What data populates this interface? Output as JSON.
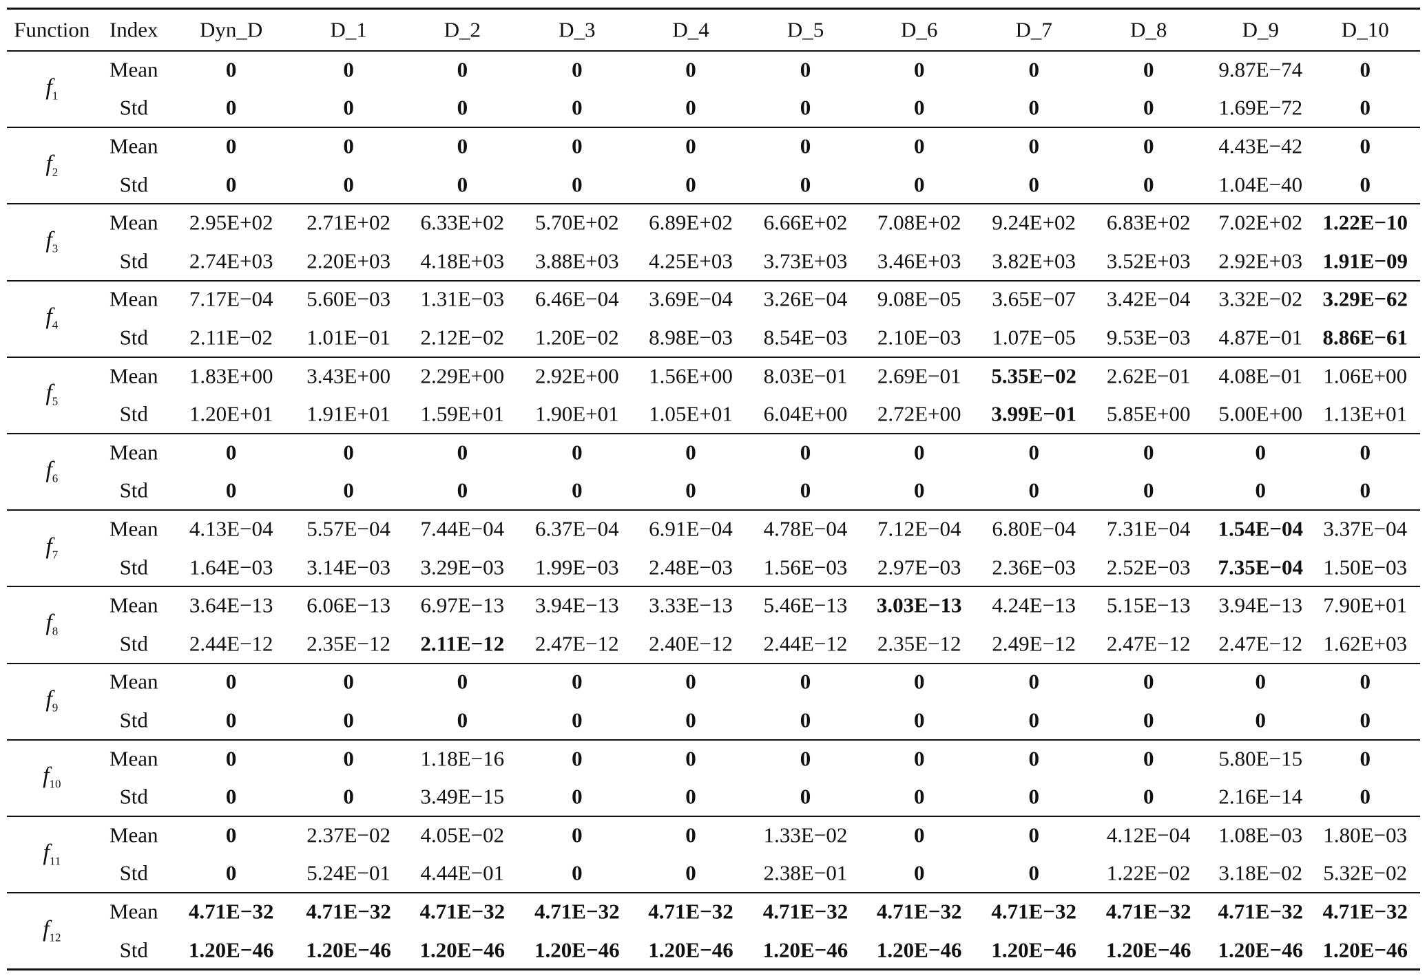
{
  "table": {
    "header": [
      "Function",
      "Index",
      "Dyn_D",
      "D_1",
      "D_2",
      "D_3",
      "D_4",
      "D_5",
      "D_6",
      "D_7",
      "D_8",
      "D_9",
      "D_10"
    ],
    "groups": [
      {
        "function": {
          "name": "f",
          "sub": "1"
        },
        "rows": [
          {
            "index": "Mean",
            "cells": [
              "0",
              "0",
              "0",
              "0",
              "0",
              "0",
              "0",
              "0",
              "0",
              "9.87E−74",
              "0"
            ],
            "bold": [
              0,
              1,
              2,
              3,
              4,
              5,
              6,
              7,
              8,
              10
            ]
          },
          {
            "index": "Std",
            "cells": [
              "0",
              "0",
              "0",
              "0",
              "0",
              "0",
              "0",
              "0",
              "0",
              "1.69E−72",
              "0"
            ],
            "bold": [
              0,
              1,
              2,
              3,
              4,
              5,
              6,
              7,
              8,
              10
            ]
          }
        ]
      },
      {
        "function": {
          "name": "f",
          "sub": "2"
        },
        "rows": [
          {
            "index": "Mean",
            "cells": [
              "0",
              "0",
              "0",
              "0",
              "0",
              "0",
              "0",
              "0",
              "0",
              "4.43E−42",
              "0"
            ],
            "bold": [
              0,
              1,
              2,
              3,
              4,
              5,
              6,
              7,
              8,
              10
            ]
          },
          {
            "index": "Std",
            "cells": [
              "0",
              "0",
              "0",
              "0",
              "0",
              "0",
              "0",
              "0",
              "0",
              "1.04E−40",
              "0"
            ],
            "bold": [
              0,
              1,
              2,
              3,
              4,
              5,
              6,
              7,
              8,
              10
            ]
          }
        ]
      },
      {
        "function": {
          "name": "f",
          "sub": "3"
        },
        "rows": [
          {
            "index": "Mean",
            "cells": [
              "2.95E+02",
              "2.71E+02",
              "6.33E+02",
              "5.70E+02",
              "6.89E+02",
              "6.66E+02",
              "7.08E+02",
              "9.24E+02",
              "6.83E+02",
              "7.02E+02",
              "1.22E−10"
            ],
            "bold": [
              10
            ]
          },
          {
            "index": "Std",
            "cells": [
              "2.74E+03",
              "2.20E+03",
              "4.18E+03",
              "3.88E+03",
              "4.25E+03",
              "3.73E+03",
              "3.46E+03",
              "3.82E+03",
              "3.52E+03",
              "2.92E+03",
              "1.91E−09"
            ],
            "bold": [
              10
            ]
          }
        ]
      },
      {
        "function": {
          "name": "f",
          "sub": "4"
        },
        "rows": [
          {
            "index": "Mean",
            "cells": [
              "7.17E−04",
              "5.60E−03",
              "1.31E−03",
              "6.46E−04",
              "3.69E−04",
              "3.26E−04",
              "9.08E−05",
              "3.65E−07",
              "3.42E−04",
              "3.32E−02",
              "3.29E−62"
            ],
            "bold": [
              10
            ]
          },
          {
            "index": "Std",
            "cells": [
              "2.11E−02",
              "1.01E−01",
              "2.12E−02",
              "1.20E−02",
              "8.98E−03",
              "8.54E−03",
              "2.10E−03",
              "1.07E−05",
              "9.53E−03",
              "4.87E−01",
              "8.86E−61"
            ],
            "bold": [
              10
            ]
          }
        ]
      },
      {
        "function": {
          "name": "f",
          "sub": "5"
        },
        "rows": [
          {
            "index": "Mean",
            "cells": [
              "1.83E+00",
              "3.43E+00",
              "2.29E+00",
              "2.92E+00",
              "1.56E+00",
              "8.03E−01",
              "2.69E−01",
              "5.35E−02",
              "2.62E−01",
              "4.08E−01",
              "1.06E+00"
            ],
            "bold": [
              7
            ]
          },
          {
            "index": "Std",
            "cells": [
              "1.20E+01",
              "1.91E+01",
              "1.59E+01",
              "1.90E+01",
              "1.05E+01",
              "6.04E+00",
              "2.72E+00",
              "3.99E−01",
              "5.85E+00",
              "5.00E+00",
              "1.13E+01"
            ],
            "bold": [
              7
            ]
          }
        ]
      },
      {
        "function": {
          "name": "f",
          "sub": "6"
        },
        "rows": [
          {
            "index": "Mean",
            "cells": [
              "0",
              "0",
              "0",
              "0",
              "0",
              "0",
              "0",
              "0",
              "0",
              "0",
              "0"
            ],
            "bold": [
              0,
              1,
              2,
              3,
              4,
              5,
              6,
              7,
              8,
              9,
              10
            ]
          },
          {
            "index": "Std",
            "cells": [
              "0",
              "0",
              "0",
              "0",
              "0",
              "0",
              "0",
              "0",
              "0",
              "0",
              "0"
            ],
            "bold": [
              0,
              1,
              2,
              3,
              4,
              5,
              6,
              7,
              8,
              9,
              10
            ]
          }
        ]
      },
      {
        "function": {
          "name": "f",
          "sub": "7"
        },
        "rows": [
          {
            "index": "Mean",
            "cells": [
              "4.13E−04",
              "5.57E−04",
              "7.44E−04",
              "6.37E−04",
              "6.91E−04",
              "4.78E−04",
              "7.12E−04",
              "6.80E−04",
              "7.31E−04",
              "1.54E−04",
              "3.37E−04"
            ],
            "bold": [
              9
            ]
          },
          {
            "index": "Std",
            "cells": [
              "1.64E−03",
              "3.14E−03",
              "3.29E−03",
              "1.99E−03",
              "2.48E−03",
              "1.56E−03",
              "2.97E−03",
              "2.36E−03",
              "2.52E−03",
              "7.35E−04",
              "1.50E−03"
            ],
            "bold": [
              9
            ]
          }
        ]
      },
      {
        "function": {
          "name": "f",
          "sub": "8"
        },
        "rows": [
          {
            "index": "Mean",
            "cells": [
              "3.64E−13",
              "6.06E−13",
              "6.97E−13",
              "3.94E−13",
              "3.33E−13",
              "5.46E−13",
              "3.03E−13",
              "4.24E−13",
              "5.15E−13",
              "3.94E−13",
              "7.90E+01"
            ],
            "bold": [
              6
            ]
          },
          {
            "index": "Std",
            "cells": [
              "2.44E−12",
              "2.35E−12",
              "2.11E−12",
              "2.47E−12",
              "2.40E−12",
              "2.44E−12",
              "2.35E−12",
              "2.49E−12",
              "2.47E−12",
              "2.47E−12",
              "1.62E+03"
            ],
            "bold": [
              2
            ]
          }
        ]
      },
      {
        "function": {
          "name": "f",
          "sub": "9"
        },
        "rows": [
          {
            "index": "Mean",
            "cells": [
              "0",
              "0",
              "0",
              "0",
              "0",
              "0",
              "0",
              "0",
              "0",
              "0",
              "0"
            ],
            "bold": [
              0,
              1,
              2,
              3,
              4,
              5,
              6,
              7,
              8,
              9,
              10
            ]
          },
          {
            "index": "Std",
            "cells": [
              "0",
              "0",
              "0",
              "0",
              "0",
              "0",
              "0",
              "0",
              "0",
              "0",
              "0"
            ],
            "bold": [
              0,
              1,
              2,
              3,
              4,
              5,
              6,
              7,
              8,
              9,
              10
            ]
          }
        ]
      },
      {
        "function": {
          "name": "f",
          "sub": "10"
        },
        "rows": [
          {
            "index": "Mean",
            "cells": [
              "0",
              "0",
              "1.18E−16",
              "0",
              "0",
              "0",
              "0",
              "0",
              "0",
              "5.80E−15",
              "0"
            ],
            "bold": [
              0,
              1,
              3,
              4,
              5,
              6,
              7,
              8,
              10
            ]
          },
          {
            "index": "Std",
            "cells": [
              "0",
              "0",
              "3.49E−15",
              "0",
              "0",
              "0",
              "0",
              "0",
              "0",
              "2.16E−14",
              "0"
            ],
            "bold": [
              0,
              1,
              3,
              4,
              5,
              6,
              7,
              8,
              10
            ]
          }
        ]
      },
      {
        "function": {
          "name": "f",
          "sub": "11"
        },
        "rows": [
          {
            "index": "Mean",
            "cells": [
              "0",
              "2.37E−02",
              "4.05E−02",
              "0",
              "0",
              "1.33E−02",
              "0",
              "0",
              "4.12E−04",
              "1.08E−03",
              "1.80E−03"
            ],
            "bold": [
              0,
              3,
              4,
              6,
              7
            ]
          },
          {
            "index": "Std",
            "cells": [
              "0",
              "5.24E−01",
              "4.44E−01",
              "0",
              "0",
              "2.38E−01",
              "0",
              "0",
              "1.22E−02",
              "3.18E−02",
              "5.32E−02"
            ],
            "bold": [
              0,
              3,
              4,
              6,
              7
            ]
          }
        ]
      },
      {
        "function": {
          "name": "f",
          "sub": "12"
        },
        "rows": [
          {
            "index": "Mean",
            "cells": [
              "4.71E−32",
              "4.71E−32",
              "4.71E−32",
              "4.71E−32",
              "4.71E−32",
              "4.71E−32",
              "4.71E−32",
              "4.71E−32",
              "4.71E−32",
              "4.71E−32",
              "4.71E−32"
            ],
            "bold": [
              0,
              1,
              2,
              3,
              4,
              5,
              6,
              7,
              8,
              9,
              10
            ]
          },
          {
            "index": "Std",
            "cells": [
              "1.20E−46",
              "1.20E−46",
              "1.20E−46",
              "1.20E−46",
              "1.20E−46",
              "1.20E−46",
              "1.20E−46",
              "1.20E−46",
              "1.20E−46",
              "1.20E−46",
              "1.20E−46"
            ],
            "bold": [
              0,
              1,
              2,
              3,
              4,
              5,
              6,
              7,
              8,
              9,
              10
            ]
          }
        ]
      }
    ]
  }
}
